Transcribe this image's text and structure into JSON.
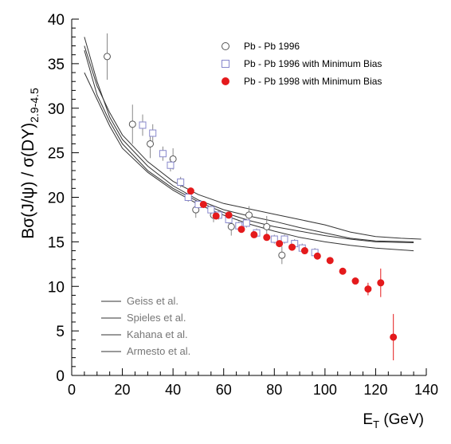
{
  "chart_data": {
    "type": "scatter",
    "ylabel_main": "Bσ(J/ψ) / σ(DY)",
    "ylabel_sub": "2.9-4.5",
    "xlabel_main": "E",
    "xlabel_sub": "T",
    "xlabel_unit": " (GeV)",
    "xlim": [
      0,
      140
    ],
    "ylim": [
      0,
      40
    ],
    "x_ticks": [
      0,
      20,
      40,
      60,
      80,
      100,
      120,
      140
    ],
    "y_ticks": [
      0,
      5,
      10,
      15,
      20,
      25,
      30,
      35,
      40
    ],
    "legend_position": "top-right",
    "colors": {
      "red": "#e41a1c",
      "square": "#8888cc",
      "circle": "#555555",
      "line": "#333333",
      "errbar": "#888888"
    },
    "series": [
      {
        "name": "Pb - Pb 1996",
        "marker": "open-circle",
        "points": [
          {
            "x": 14,
            "y": 35.8,
            "err": 2.6
          },
          {
            "x": 24,
            "y": 28.2,
            "err": 2.2
          },
          {
            "x": 31,
            "y": 26.0,
            "err": 1.6
          },
          {
            "x": 40,
            "y": 24.3,
            "err": 1.2
          },
          {
            "x": 49,
            "y": 18.6,
            "err": 0.9
          },
          {
            "x": 56,
            "y": 18.0,
            "err": 0.8
          },
          {
            "x": 63,
            "y": 16.7,
            "err": 1.0
          },
          {
            "x": 70,
            "y": 18.0,
            "err": 1.0
          },
          {
            "x": 77,
            "y": 16.7,
            "err": 1.2
          },
          {
            "x": 83,
            "y": 13.5,
            "err": 1.0
          }
        ]
      },
      {
        "name": "Pb - Pb 1996 with Minimum Bias",
        "marker": "open-square",
        "points": [
          {
            "x": 28,
            "y": 28.1,
            "err": 1.2
          },
          {
            "x": 32,
            "y": 27.2,
            "err": 1.0
          },
          {
            "x": 36,
            "y": 24.9,
            "err": 0.8
          },
          {
            "x": 39,
            "y": 23.6,
            "err": 0.7
          },
          {
            "x": 43,
            "y": 21.7,
            "err": 0.6
          },
          {
            "x": 46,
            "y": 20.0,
            "err": 0.5
          },
          {
            "x": 50,
            "y": 19.2,
            "err": 0.5
          },
          {
            "x": 55,
            "y": 18.6,
            "err": 0.5
          },
          {
            "x": 58,
            "y": 18.0,
            "err": 0.5
          },
          {
            "x": 62,
            "y": 17.5,
            "err": 0.5
          },
          {
            "x": 66,
            "y": 16.8,
            "err": 0.5
          },
          {
            "x": 69,
            "y": 17.1,
            "err": 0.5
          },
          {
            "x": 73,
            "y": 16.0,
            "err": 0.5
          },
          {
            "x": 80,
            "y": 15.3,
            "err": 0.5
          },
          {
            "x": 84,
            "y": 15.3,
            "err": 0.5
          },
          {
            "x": 88,
            "y": 14.8,
            "err": 0.5
          },
          {
            "x": 91,
            "y": 14.3,
            "err": 0.5
          },
          {
            "x": 96,
            "y": 13.8,
            "err": 0.5
          }
        ]
      },
      {
        "name": "Pb - Pb 1998 with Minimum Bias",
        "marker": "filled-circle",
        "points": [
          {
            "x": 47,
            "y": 20.7,
            "err": 0
          },
          {
            "x": 52,
            "y": 19.2,
            "err": 0
          },
          {
            "x": 57,
            "y": 17.9,
            "err": 0
          },
          {
            "x": 62,
            "y": 18.0,
            "err": 0
          },
          {
            "x": 67,
            "y": 16.4,
            "err": 0
          },
          {
            "x": 72,
            "y": 15.8,
            "err": 0
          },
          {
            "x": 77,
            "y": 15.5,
            "err": 0
          },
          {
            "x": 82,
            "y": 14.8,
            "err": 0
          },
          {
            "x": 87,
            "y": 14.4,
            "err": 0
          },
          {
            "x": 92,
            "y": 14.0,
            "err": 0
          },
          {
            "x": 97,
            "y": 13.4,
            "err": 0
          },
          {
            "x": 102,
            "y": 12.9,
            "err": 0
          },
          {
            "x": 107,
            "y": 11.7,
            "err": 0
          },
          {
            "x": 112,
            "y": 10.6,
            "err": 0
          },
          {
            "x": 117,
            "y": 9.7,
            "err": 0.7
          },
          {
            "x": 122,
            "y": 10.4,
            "err": 1.6
          },
          {
            "x": 127,
            "y": 4.3,
            "err": 2.6
          }
        ]
      }
    ],
    "model_curves": [
      {
        "name": "Geiss et al.",
        "points": [
          [
            5,
            37.0
          ],
          [
            10,
            32.5
          ],
          [
            15,
            29.5
          ],
          [
            20,
            27.0
          ],
          [
            30,
            24.0
          ],
          [
            40,
            21.8
          ],
          [
            50,
            20.3
          ],
          [
            60,
            19.3
          ],
          [
            70,
            18.7
          ],
          [
            80,
            18.1
          ],
          [
            90,
            17.5
          ],
          [
            100,
            16.9
          ],
          [
            110,
            16.1
          ],
          [
            120,
            15.6
          ],
          [
            130,
            15.4
          ],
          [
            138,
            15.3
          ]
        ]
      },
      {
        "name": "Spieles et al.",
        "points": [
          [
            5,
            38.0
          ],
          [
            10,
            33.0
          ],
          [
            15,
            29.0
          ],
          [
            20,
            26.5
          ],
          [
            30,
            23.5
          ],
          [
            40,
            21.3
          ],
          [
            50,
            19.7
          ],
          [
            60,
            18.6
          ],
          [
            70,
            17.9
          ],
          [
            80,
            17.3
          ],
          [
            90,
            16.6
          ],
          [
            100,
            16.0
          ],
          [
            110,
            15.4
          ],
          [
            120,
            15.1
          ],
          [
            135,
            15.0
          ]
        ]
      },
      {
        "name": "Kahana et al.",
        "points": [
          [
            5,
            36.5
          ],
          [
            10,
            31.5
          ],
          [
            15,
            28.5
          ],
          [
            20,
            26.0
          ],
          [
            30,
            23.0
          ],
          [
            40,
            21.0
          ],
          [
            50,
            19.5
          ],
          [
            60,
            18.3
          ],
          [
            70,
            17.4
          ],
          [
            80,
            16.7
          ],
          [
            90,
            16.2
          ],
          [
            100,
            15.7
          ],
          [
            110,
            15.3
          ],
          [
            120,
            15.0
          ],
          [
            135,
            14.9
          ]
        ]
      },
      {
        "name": "Armesto et al.",
        "points": [
          [
            5,
            34.0
          ],
          [
            10,
            31.0
          ],
          [
            15,
            28.0
          ],
          [
            20,
            25.5
          ],
          [
            30,
            22.8
          ],
          [
            40,
            20.8
          ],
          [
            50,
            19.2
          ],
          [
            60,
            18.0
          ],
          [
            70,
            17.0
          ],
          [
            80,
            16.2
          ],
          [
            90,
            15.5
          ],
          [
            100,
            15.0
          ],
          [
            110,
            14.6
          ],
          [
            120,
            14.3
          ],
          [
            135,
            14.0
          ]
        ]
      }
    ]
  }
}
